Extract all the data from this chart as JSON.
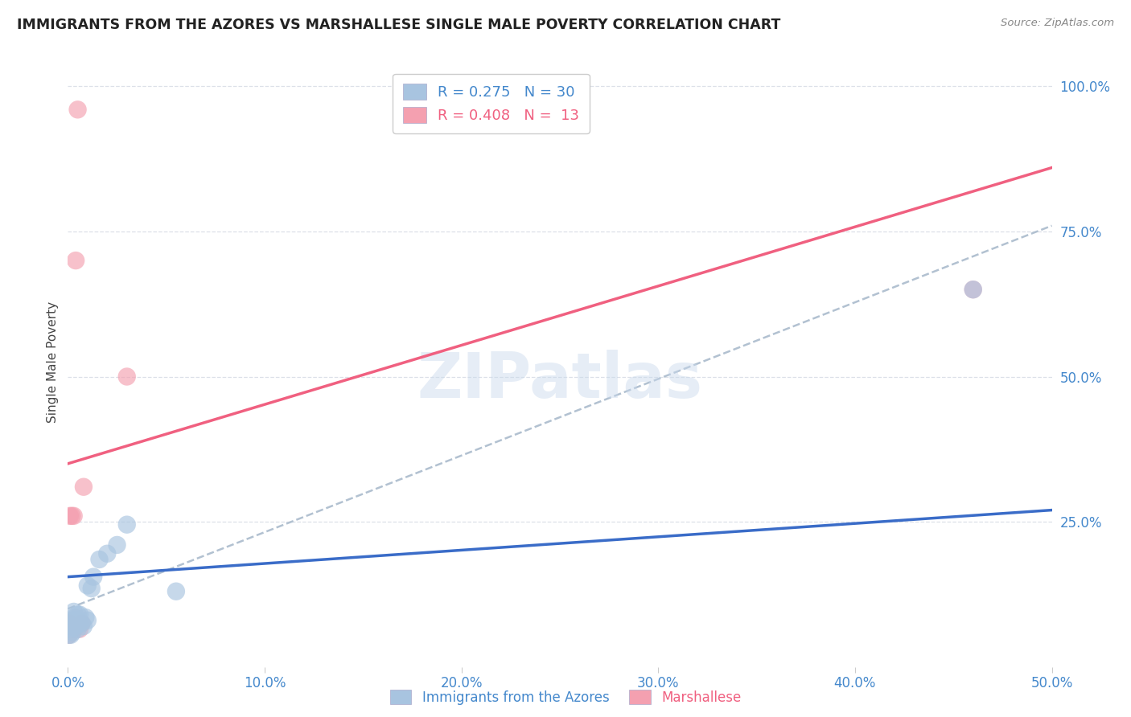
{
  "title": "IMMIGRANTS FROM THE AZORES VS MARSHALLESE SINGLE MALE POVERTY CORRELATION CHART",
  "source": "Source: ZipAtlas.com",
  "ylabel": "Single Male Poverty",
  "xlim": [
    0.0,
    0.5
  ],
  "ylim": [
    0.0,
    1.05
  ],
  "xtick_labels": [
    "0.0%",
    "10.0%",
    "20.0%",
    "30.0%",
    "40.0%",
    "50.0%"
  ],
  "xtick_values": [
    0.0,
    0.1,
    0.2,
    0.3,
    0.4,
    0.5
  ],
  "ytick_right_labels": [
    "100.0%",
    "75.0%",
    "50.0%",
    "25.0%"
  ],
  "ytick_right_values": [
    1.0,
    0.75,
    0.5,
    0.25
  ],
  "azores_color": "#a8c4e0",
  "marshallese_color": "#f4a0b0",
  "azores_line_color": "#3a6cc8",
  "marshallese_line_color": "#f06080",
  "dashed_line_color": "#aabbcc",
  "watermark": "ZIPatlas",
  "azores_scatter_x": [
    0.0005,
    0.001,
    0.001,
    0.0015,
    0.002,
    0.002,
    0.0025,
    0.003,
    0.003,
    0.003,
    0.004,
    0.004,
    0.005,
    0.005,
    0.005,
    0.006,
    0.006,
    0.007,
    0.008,
    0.009,
    0.01,
    0.01,
    0.012,
    0.013,
    0.016,
    0.02,
    0.025,
    0.03,
    0.055,
    0.46
  ],
  "azores_scatter_y": [
    0.055,
    0.065,
    0.075,
    0.055,
    0.07,
    0.08,
    0.06,
    0.075,
    0.085,
    0.095,
    0.07,
    0.08,
    0.065,
    0.08,
    0.09,
    0.075,
    0.09,
    0.075,
    0.07,
    0.085,
    0.08,
    0.14,
    0.135,
    0.155,
    0.185,
    0.195,
    0.21,
    0.245,
    0.13,
    0.65
  ],
  "marshallese_scatter_x": [
    0.0005,
    0.001,
    0.001,
    0.002,
    0.003,
    0.003,
    0.004,
    0.005,
    0.006,
    0.007,
    0.008,
    0.03,
    0.46
  ],
  "marshallese_scatter_y": [
    0.055,
    0.075,
    0.26,
    0.26,
    0.065,
    0.26,
    0.7,
    0.96,
    0.065,
    0.075,
    0.31,
    0.5,
    0.65
  ],
  "azores_line_x0": 0.0,
  "azores_line_y0": 0.155,
  "azores_line_x1": 0.5,
  "azores_line_y1": 0.27,
  "marshallese_line_x0": 0.0,
  "marshallese_line_y0": 0.35,
  "marshallese_line_x1": 0.5,
  "marshallese_line_y1": 0.86,
  "dashed_line_x0": 0.0,
  "dashed_line_y0": 0.1,
  "dashed_line_x1": 0.5,
  "dashed_line_y1": 0.76,
  "background_color": "#ffffff",
  "grid_color": "#dce0e8"
}
